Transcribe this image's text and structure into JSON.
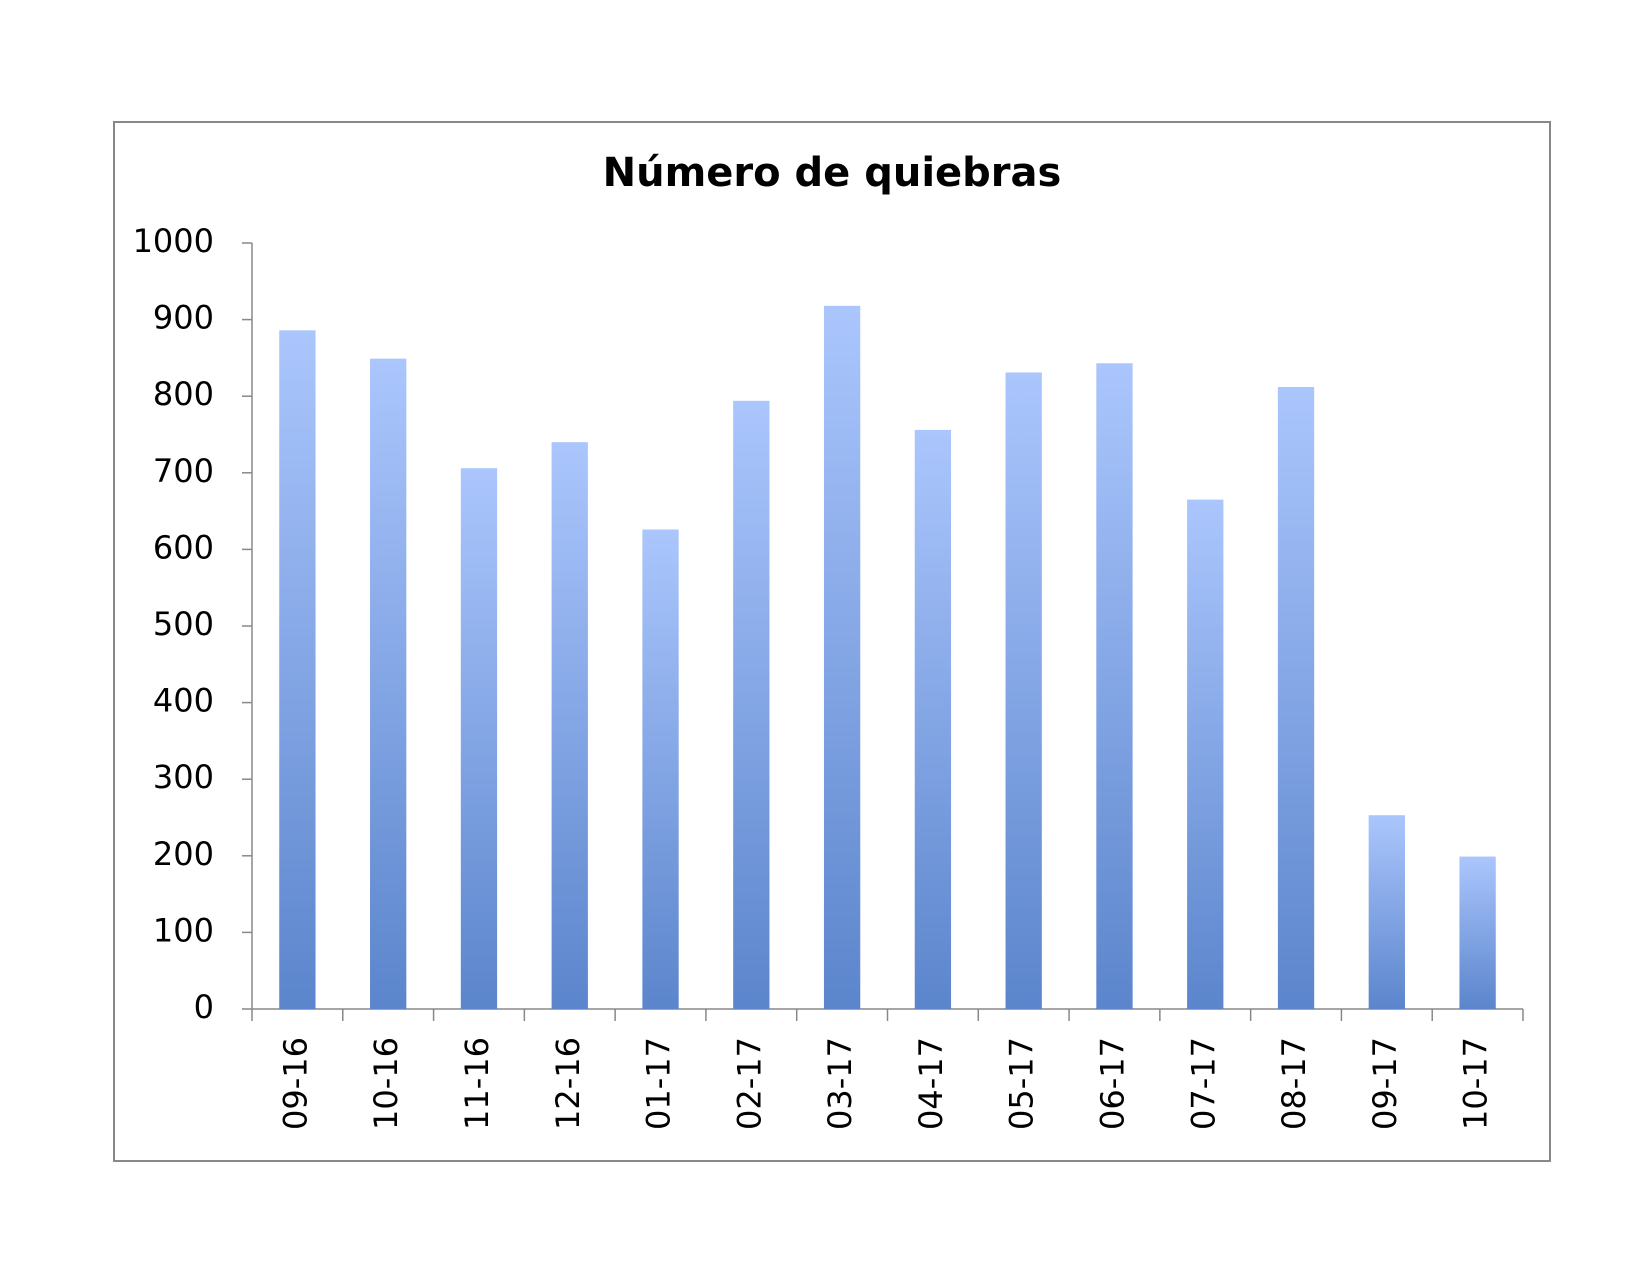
{
  "chart_data": {
    "type": "bar",
    "title": "Número de quiebras",
    "categories": [
      "09-16",
      "10-16",
      "11-16",
      "12-16",
      "01-17",
      "02-17",
      "03-17",
      "04-17",
      "05-17",
      "06-17",
      "07-17",
      "08-17",
      "09-17",
      "10-17"
    ],
    "values": [
      886,
      849,
      706,
      740,
      626,
      794,
      918,
      756,
      831,
      843,
      665,
      812,
      253,
      199
    ],
    "gradient": [
      "#abc6fd",
      "#5b85cc"
    ],
    "ylim": [
      0,
      1000
    ],
    "yticks": [
      0,
      100,
      200,
      300,
      400,
      500,
      600,
      700,
      800,
      900,
      1000
    ],
    "grid": false
  }
}
